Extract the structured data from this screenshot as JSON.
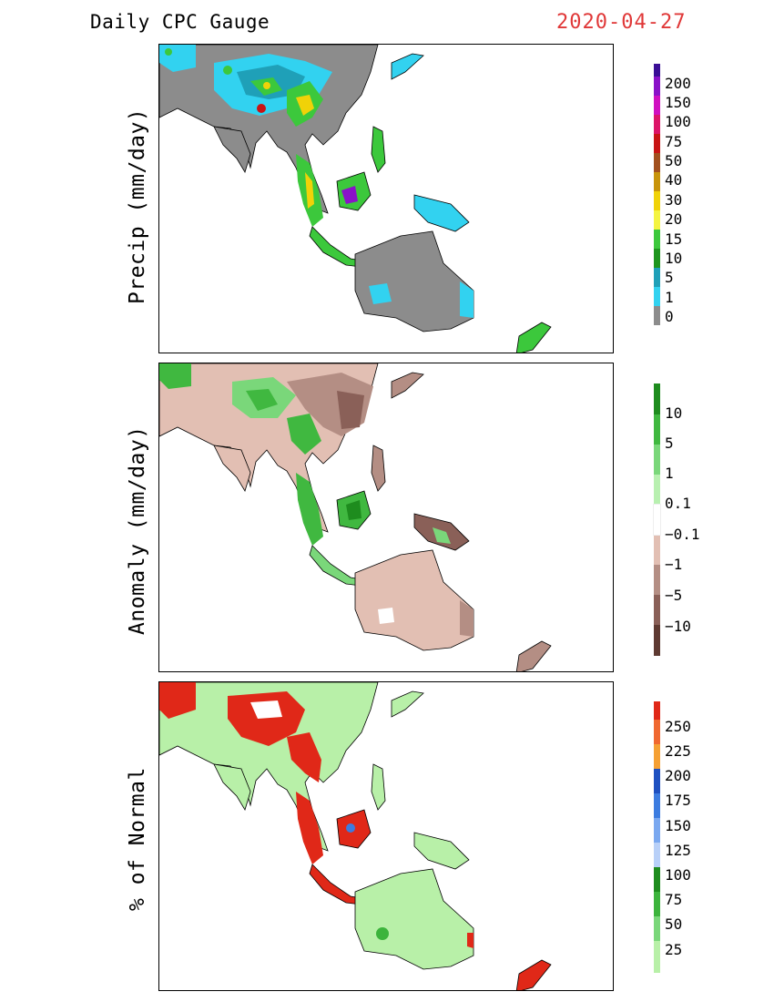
{
  "header": {
    "title": "Daily CPC Gauge",
    "date": "2020-04-27",
    "date_color": "#e03838"
  },
  "panels": [
    {
      "ylabel": "Precip (mm/day)",
      "scale": [
        {
          "label": "200",
          "color": "#3a0e96"
        },
        {
          "label": "150",
          "color": "#8a12c8"
        },
        {
          "label": "100",
          "color": "#d00fc0"
        },
        {
          "label": "75",
          "color": "#dc1468"
        },
        {
          "label": "50",
          "color": "#c81414"
        },
        {
          "label": "40",
          "color": "#a2501e"
        },
        {
          "label": "30",
          "color": "#c8940a"
        },
        {
          "label": "20",
          "color": "#f0d208"
        },
        {
          "label": "15",
          "color": "#f4f442"
        },
        {
          "label": "10",
          "color": "#3cc83c"
        },
        {
          "label": "5",
          "color": "#1e961e"
        },
        {
          "label": "1",
          "color": "#1fa0b8"
        },
        {
          "label": "0",
          "color": "#32d2f0"
        }
      ],
      "bottom_color": "#8c8c8c"
    },
    {
      "ylabel": "Anomaly (mm/day)",
      "scale": [
        {
          "label": "10",
          "color": "#1e8c1e"
        },
        {
          "label": "5",
          "color": "#40b840"
        },
        {
          "label": "1",
          "color": "#7ad77a"
        },
        {
          "label": "0.1",
          "color": "#b8f0b0"
        },
        {
          "label": "−0.1",
          "color": "#ffffff"
        },
        {
          "label": "−1",
          "color": "#e2bfb3"
        },
        {
          "label": "−5",
          "color": "#b48e84"
        },
        {
          "label": "−10",
          "color": "#8a6058"
        }
      ],
      "bottom_color": "#5e3a32"
    },
    {
      "ylabel": "% of Normal",
      "scale": [
        {
          "label": "250",
          "color": "#e02818"
        },
        {
          "label": "225",
          "color": "#f06830"
        },
        {
          "label": "200",
          "color": "#f5a034"
        },
        {
          "label": "175",
          "color": "#1e50c0"
        },
        {
          "label": "150",
          "color": "#3c7ce0"
        },
        {
          "label": "125",
          "color": "#7aa8f0"
        },
        {
          "label": "100",
          "color": "#b8d0f8"
        },
        {
          "label": "75",
          "color": "#1e8c1e"
        },
        {
          "label": "50",
          "color": "#3cb43c"
        },
        {
          "label": "25",
          "color": "#7ad77a"
        }
      ],
      "bottom_color": "#b8f0a8"
    }
  ]
}
